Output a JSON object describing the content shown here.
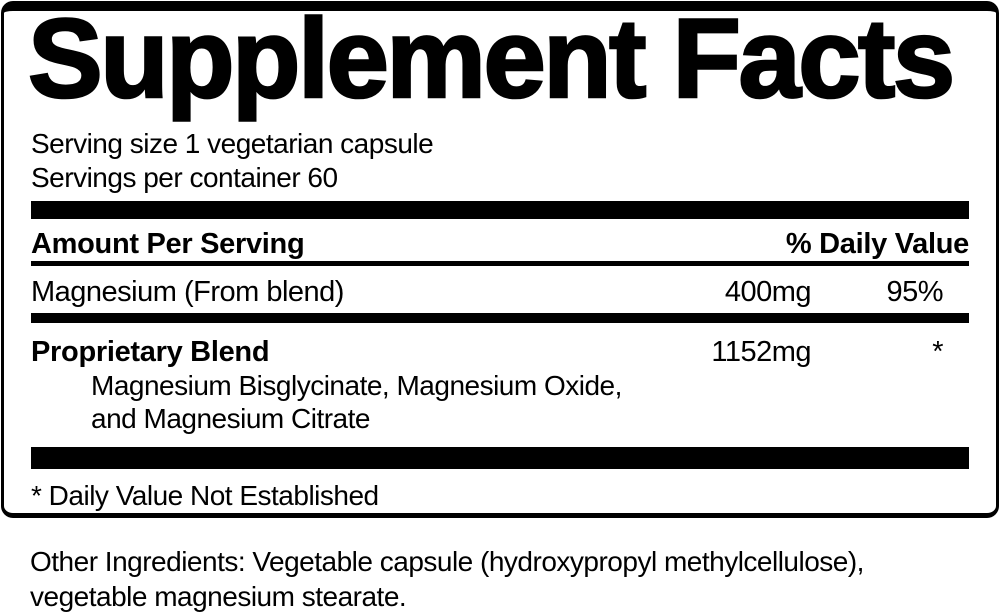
{
  "label": {
    "title": "Supplement Facts",
    "serving_size": "Serving size 1 vegetarian capsule",
    "servings_per_container": "Servings per container 60",
    "header": {
      "amount": "Amount Per Serving",
      "daily_value": "% Daily Value"
    },
    "rows": [
      {
        "name": "Magnesium (From blend)",
        "amount": "400mg",
        "daily_value": "95%"
      },
      {
        "name": "Proprietary Blend",
        "amount": "1152mg",
        "daily_value": "*",
        "sub_ingredients": [
          "Magnesium Bisglycinate, Magnesium Oxide,",
          "and Magnesium Citrate"
        ]
      }
    ],
    "footnote": "* Daily Value Not Established",
    "other_ingredients": {
      "line1": "Other Ingredients: Vegetable capsule (hydroxypropyl methylcellulose),",
      "line2": "vegetable magnesium stearate."
    },
    "colors": {
      "ink": "#000000",
      "background": "#ffffff"
    }
  }
}
